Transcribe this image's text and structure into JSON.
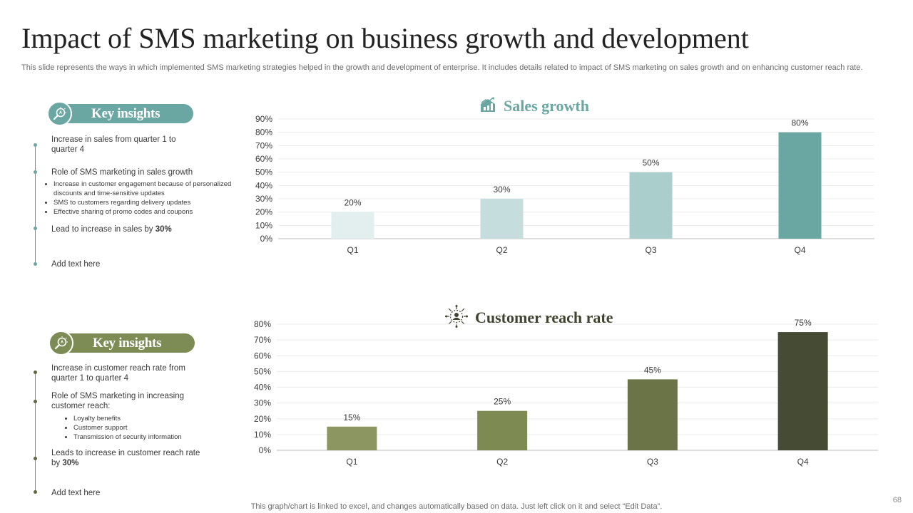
{
  "title": "Impact of SMS marketing on business growth and development",
  "subtitle": "This slide represents the ways in which implemented SMS marketing strategies helped in the growth and development of enterprise. It includes details related to impact of SMS marketing on sales growth and on enhancing customer reach rate.",
  "colors": {
    "teal_accent": "#6aa7a3",
    "olive_accent": "#7d8c55",
    "sales_bars": [
      "#e3eeee",
      "#c5dddc",
      "#a9cecb",
      "#6aa7a3"
    ],
    "reach_bars": [
      "#8b9660",
      "#7d8a51",
      "#6b7446",
      "#454c33"
    ]
  },
  "top_panel": {
    "badge_label": "Key insights",
    "badge_icon": "magnifier-lightbulb-icon",
    "items": [
      {
        "text": "Increase in sales from quarter 1 to quarter 4"
      },
      {
        "text": "Role of SMS  marketing in sales growth",
        "bullets": [
          "Increase in customer engagement  because of personalized discounts and time-sensitive updates",
          "SMS  to customers regarding delivery updates",
          "Effective sharing of promo codes and coupons"
        ]
      },
      {
        "text": "Lead to increase in sales by",
        "strong": "30%"
      },
      {
        "text": "Add text here"
      }
    ]
  },
  "bottom_panel": {
    "badge_label": "Key insights",
    "badge_icon": "magnifier-lightbulb-icon",
    "items": [
      {
        "text": "Increase in customer reach rate from quarter 1 to quarter 4"
      },
      {
        "text": "Role of SMS  marketing in increasing customer reach:",
        "bullets": [
          "Loyalty benefits",
          "Customer support",
          "Transmission of security information"
        ]
      },
      {
        "text": "Leads to increase in customer reach rate by",
        "strong": "30%"
      },
      {
        "text": "Add text here"
      }
    ]
  },
  "chart_data": [
    {
      "type": "bar",
      "title": "Sales growth",
      "title_icon": "growth-house-chart-icon",
      "categories": [
        "Q1",
        "Q2",
        "Q3",
        "Q4"
      ],
      "values": [
        20,
        30,
        50,
        80
      ],
      "data_labels": [
        "20%",
        "30%",
        "50%",
        "80%"
      ],
      "ylim": [
        0,
        90
      ],
      "yticks": [
        0,
        10,
        20,
        30,
        40,
        50,
        60,
        70,
        80,
        90
      ],
      "ytick_labels": [
        "0%",
        "10%",
        "20%",
        "30%",
        "40%",
        "50%",
        "60%",
        "70%",
        "80%",
        "90%"
      ],
      "xlabel": "",
      "ylabel": "",
      "grid": true,
      "legend": false
    },
    {
      "type": "bar",
      "title": "Customer reach rate",
      "title_icon": "network-people-icon",
      "categories": [
        "Q1",
        "Q2",
        "Q3",
        "Q4"
      ],
      "values": [
        15,
        25,
        45,
        75
      ],
      "data_labels": [
        "15%",
        "25%",
        "45%",
        "75%"
      ],
      "ylim": [
        0,
        80
      ],
      "yticks": [
        0,
        10,
        20,
        30,
        40,
        50,
        60,
        70,
        80
      ],
      "ytick_labels": [
        "0%",
        "10%",
        "20%",
        "30%",
        "40%",
        "50%",
        "60%",
        "70%",
        "80%"
      ],
      "xlabel": "",
      "ylabel": "",
      "grid": true,
      "legend": false
    }
  ],
  "footer": "This graph/chart is linked to excel,  and changes automatically based on data. Just left click on it and select “Edit Data”.",
  "page_number": "68"
}
